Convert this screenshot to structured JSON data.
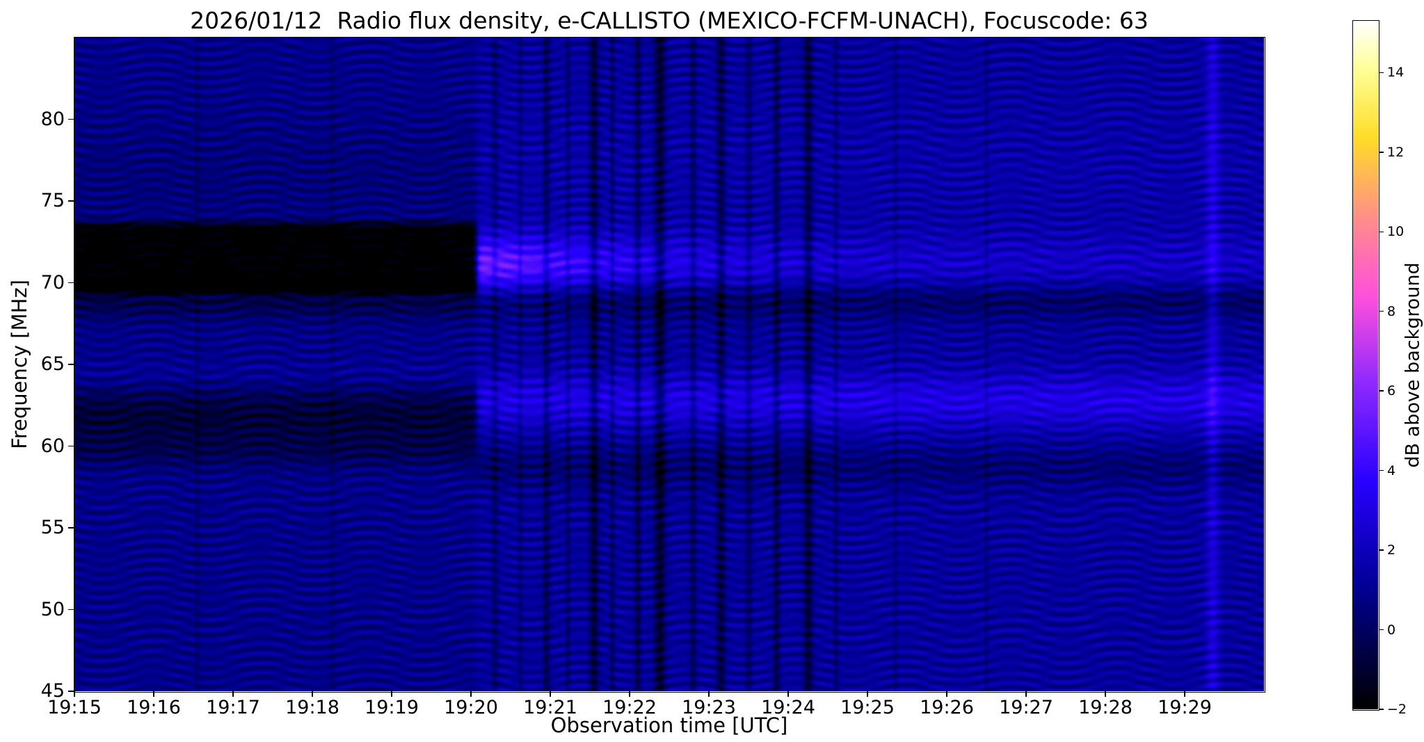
{
  "title": "2026/01/12  Radio flux density, e-CALLISTO (MEXICO-FCFM-UNACH), Focuscode: 63",
  "chart_data": {
    "type": "heatmap",
    "xlabel": "Observation time [UTC]",
    "ylabel": "Frequency [MHz]",
    "colorbar_label": "dB above background",
    "x_tick_labels": [
      "19:15",
      "19:16",
      "19:17",
      "19:18",
      "19:19",
      "19:20",
      "19:21",
      "19:22",
      "19:23",
      "19:24",
      "19:25",
      "19:26",
      "19:27",
      "19:28",
      "19:29"
    ],
    "time_span_min": 15,
    "x_start": "19:15",
    "x_end": "19:30",
    "ylim_mhz": [
      45,
      85
    ],
    "y_tick_values": [
      45,
      50,
      55,
      60,
      65,
      70,
      75,
      80
    ],
    "y_tick_labels": [
      "45",
      "50",
      "55",
      "60",
      "65",
      "70",
      "75",
      "80"
    ],
    "colorbar_range": [
      -2,
      15.3
    ],
    "colorbar_tick_values": [
      -2,
      0,
      2,
      4,
      6,
      8,
      10,
      12,
      14
    ],
    "colorbar_tick_labels": [
      "−2",
      "0",
      "2",
      "4",
      "6",
      "8",
      "10",
      "12",
      "14"
    ],
    "colormap_stops": [
      [
        0.0,
        "#000000"
      ],
      [
        0.18,
        "#000096"
      ],
      [
        0.33,
        "#2800ff"
      ],
      [
        0.47,
        "#8c28ff"
      ],
      [
        0.6,
        "#ff50dc"
      ],
      [
        0.71,
        "#ff8c8c"
      ],
      [
        0.83,
        "#ffdc28"
      ],
      [
        0.93,
        "#ffff99"
      ],
      [
        1.0,
        "#ffffff"
      ]
    ],
    "model": {
      "transition_t_min": 5.07,
      "transition_sharpness_min": 0.02,
      "base_left_db": 0.85,
      "base_right_db": 1.25,
      "flat_band": {
        "y_start_lo": 69.0,
        "y_start_hi": 69.8,
        "y_end_lo": 73.2,
        "y_end_hi": 74.1,
        "amp_db": -3.1
      },
      "gauss_bands": [
        {
          "yc_mhz": 61.8,
          "sigma_mhz": 1.4,
          "amp_db": -1.7,
          "side": "left"
        },
        {
          "yc_mhz": 59.6,
          "sigma_mhz": 0.7,
          "amp_db": -0.7,
          "side": "left"
        },
        {
          "yc_mhz": 64.3,
          "sigma_mhz": 0.7,
          "amp_db": 0.5,
          "side": "left"
        },
        {
          "yc_mhz": 76.5,
          "sigma_mhz": 2.5,
          "amp_db": -0.35,
          "side": "left"
        },
        {
          "yc_mhz": 68.9,
          "sigma_mhz": 0.8,
          "amp_db": -1.35,
          "side": "both"
        },
        {
          "yc_mhz": 62.8,
          "sigma_mhz": 1.2,
          "amp_db": 1.8,
          "side": "right"
        },
        {
          "yc_mhz": 58.7,
          "sigma_mhz": 0.9,
          "amp_db": -0.9,
          "side": "right"
        },
        {
          "yc_mhz": 77.0,
          "sigma_mhz": 3.0,
          "amp_db": 0.3,
          "side": "right"
        }
      ],
      "burst_ridge": {
        "yc_mhz": 71.1,
        "sigma_mhz": 1.3,
        "amp_floor_db": 0.9,
        "amp_peak_db": 3.6,
        "decay_min": 2.0
      },
      "ripple": {
        "a1_db": 0.55,
        "wavelength1_mhz": 0.62,
        "wobble_amp_rad": 3.2,
        "wobble_period_min": 1.35,
        "slow_phase_amp_rad": 1.0,
        "slow_period_mhz": 7.5,
        "drift_rad_per_min": 0.6,
        "a2_db": 0.33,
        "wavelength2_mhz": 0.55,
        "drift2_period_min": 2.6,
        "phase2_rad": 1.3
      },
      "vertical_streaks": [
        {
          "t_min": 1.55,
          "amp_db": -0.5,
          "width_min": 0.025
        },
        {
          "t_min": 3.25,
          "amp_db": -0.5,
          "width_min": 0.025
        },
        {
          "t_min": 5.3,
          "amp_db": -1.1,
          "width_min": 0.03
        },
        {
          "t_min": 5.62,
          "amp_db": -0.9,
          "width_min": 0.02
        },
        {
          "t_min": 5.95,
          "amp_db": -1.6,
          "width_min": 0.03
        },
        {
          "t_min": 6.22,
          "amp_db": -1.1,
          "width_min": 0.02
        },
        {
          "t_min": 6.55,
          "amp_db": -2.1,
          "width_min": 0.04
        },
        {
          "t_min": 6.78,
          "amp_db": -1.3,
          "width_min": 0.02
        },
        {
          "t_min": 7.1,
          "amp_db": -1.7,
          "width_min": 0.03
        },
        {
          "t_min": 7.38,
          "amp_db": -2.3,
          "width_min": 0.05
        },
        {
          "t_min": 7.8,
          "amp_db": -1.4,
          "width_min": 0.03
        },
        {
          "t_min": 8.15,
          "amp_db": -1.9,
          "width_min": 0.04
        },
        {
          "t_min": 8.5,
          "amp_db": -1.2,
          "width_min": 0.03
        },
        {
          "t_min": 8.85,
          "amp_db": -1.7,
          "width_min": 0.03
        },
        {
          "t_min": 9.25,
          "amp_db": -2.1,
          "width_min": 0.04
        },
        {
          "t_min": 9.6,
          "amp_db": -1.1,
          "width_min": 0.02
        },
        {
          "t_min": 10.35,
          "amp_db": -0.7,
          "width_min": 0.02
        },
        {
          "t_min": 11.5,
          "amp_db": -0.6,
          "width_min": 0.02
        },
        {
          "t_min": 14.35,
          "amp_db": 1.5,
          "width_min": 0.06
        }
      ],
      "noise_db": 0.18
    },
    "sampled_grid": {
      "note": "coarse estimate of dB above background on a 2.5 MHz x 1 min grid",
      "x_minute_labels": [
        "19:15",
        "19:16",
        "19:17",
        "19:18",
        "19:19",
        "19:20",
        "19:21",
        "19:22",
        "19:23",
        "19:24",
        "19:25",
        "19:26",
        "19:27",
        "19:28",
        "19:29"
      ],
      "y_mhz_centers": [
        83.75,
        81.25,
        78.75,
        76.25,
        73.75,
        71.25,
        68.75,
        66.25,
        63.75,
        61.25,
        58.75,
        56.25,
        53.75,
        51.25,
        48.75,
        46.25
      ],
      "values_db": [
        [
          0.9,
          0.9,
          0.9,
          0.9,
          0.9,
          1.3,
          1.3,
          1.3,
          1.3,
          1.3,
          1.3,
          1.3,
          1.3,
          1.3,
          1.4
        ],
        [
          0.9,
          0.9,
          0.9,
          0.9,
          0.9,
          1.4,
          1.4,
          1.4,
          1.3,
          1.3,
          1.3,
          1.3,
          1.3,
          1.3,
          1.4
        ],
        [
          0.8,
          0.8,
          0.8,
          0.8,
          0.8,
          1.5,
          1.5,
          1.4,
          1.4,
          1.4,
          1.4,
          1.3,
          1.3,
          1.3,
          1.4
        ],
        [
          0.7,
          0.7,
          0.7,
          0.7,
          0.7,
          1.6,
          1.5,
          1.5,
          1.4,
          1.4,
          1.4,
          1.3,
          1.3,
          1.3,
          1.4
        ],
        [
          -0.8,
          -0.8,
          -0.8,
          -0.8,
          -0.8,
          2.0,
          1.9,
          1.7,
          1.6,
          1.5,
          1.5,
          1.4,
          1.4,
          1.4,
          1.5
        ],
        [
          -2.0,
          -2.0,
          -2.0,
          -2.0,
          -2.0,
          4.6,
          4.0,
          3.4,
          2.9,
          2.5,
          2.2,
          1.9,
          1.7,
          1.6,
          1.7
        ],
        [
          -1.6,
          -1.6,
          -1.6,
          -1.6,
          -1.6,
          0.4,
          0.4,
          0.3,
          0.3,
          0.3,
          0.3,
          0.3,
          0.3,
          0.3,
          0.4
        ],
        [
          0.9,
          0.9,
          0.9,
          0.9,
          0.9,
          1.3,
          1.2,
          1.2,
          1.2,
          1.2,
          1.2,
          1.2,
          1.1,
          1.1,
          1.2
        ],
        [
          0.6,
          0.6,
          0.7,
          0.7,
          0.6,
          2.3,
          2.2,
          2.2,
          2.1,
          2.1,
          2.1,
          2.0,
          1.9,
          1.9,
          2.0
        ],
        [
          -0.7,
          -0.7,
          -0.6,
          -0.6,
          -0.7,
          2.1,
          2.0,
          2.0,
          1.9,
          1.9,
          1.9,
          1.8,
          1.7,
          1.7,
          1.8
        ],
        [
          0.2,
          0.2,
          0.2,
          0.2,
          0.2,
          0.6,
          0.6,
          0.6,
          0.5,
          0.5,
          0.5,
          0.5,
          0.5,
          0.5,
          0.6
        ],
        [
          0.9,
          0.9,
          0.9,
          0.9,
          0.9,
          1.2,
          1.2,
          1.2,
          1.1,
          1.1,
          1.1,
          1.1,
          1.1,
          1.1,
          1.2
        ],
        [
          0.9,
          0.9,
          0.9,
          0.9,
          0.9,
          1.2,
          1.2,
          1.1,
          1.1,
          1.1,
          1.1,
          1.1,
          1.1,
          1.1,
          1.2
        ],
        [
          0.8,
          0.8,
          0.8,
          0.8,
          0.8,
          1.1,
          1.1,
          1.1,
          1.1,
          1.0,
          1.0,
          1.0,
          1.0,
          1.0,
          1.1
        ],
        [
          0.9,
          0.9,
          0.9,
          0.9,
          0.9,
          1.2,
          1.2,
          1.1,
          1.1,
          1.1,
          1.1,
          1.1,
          1.1,
          1.1,
          1.2
        ],
        [
          1.0,
          1.0,
          1.0,
          1.0,
          1.0,
          1.3,
          1.2,
          1.2,
          1.2,
          1.2,
          1.2,
          1.2,
          1.2,
          1.2,
          1.3
        ]
      ]
    }
  }
}
